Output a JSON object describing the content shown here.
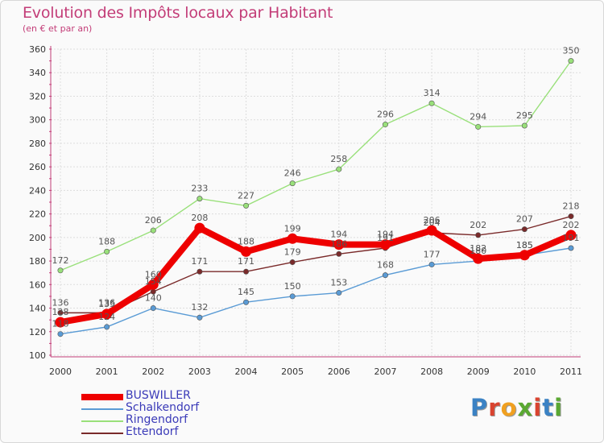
{
  "header": {
    "title": "Evolution des Impôts locaux par Habitant",
    "subtitle": "(en € et par an)"
  },
  "logo": {
    "text": "Proxiti"
  },
  "chart_data": {
    "type": "line",
    "title": "Evolution des Impôts locaux par Habitant",
    "subtitle": "(en € et par an)",
    "xlabel": "",
    "ylabel": "",
    "x": [
      "2000",
      "2001",
      "2002",
      "2003",
      "2004",
      "2005",
      "2006",
      "2007",
      "2008",
      "2009",
      "2010",
      "2011"
    ],
    "ylim": [
      100,
      360
    ],
    "yticks": [
      100,
      120,
      140,
      160,
      180,
      200,
      220,
      240,
      260,
      280,
      300,
      320,
      340,
      360
    ],
    "grid": true,
    "legend": "bottom-left",
    "series": [
      {
        "name": "BUSWILLER",
        "color": "#ee0000",
        "bold": true,
        "values": [
          128,
          135,
          160,
          208,
          188,
          199,
          194,
          194,
          206,
          182,
          185,
          202
        ]
      },
      {
        "name": "Schalkendorf",
        "color": "#5a9bd5",
        "bold": false,
        "values": [
          118,
          124,
          140,
          132,
          145,
          150,
          153,
          168,
          177,
          180,
          185,
          191
        ]
      },
      {
        "name": "Ringendorf",
        "color": "#99e07a",
        "bold": false,
        "values": [
          172,
          188,
          206,
          233,
          227,
          246,
          258,
          296,
          314,
          294,
          295,
          350
        ]
      },
      {
        "name": "Ettendorf",
        "color": "#7a2a2a",
        "bold": false,
        "values": [
          136,
          136,
          154,
          171,
          171,
          179,
          186,
          191,
          204,
          202,
          207,
          218
        ]
      }
    ]
  }
}
